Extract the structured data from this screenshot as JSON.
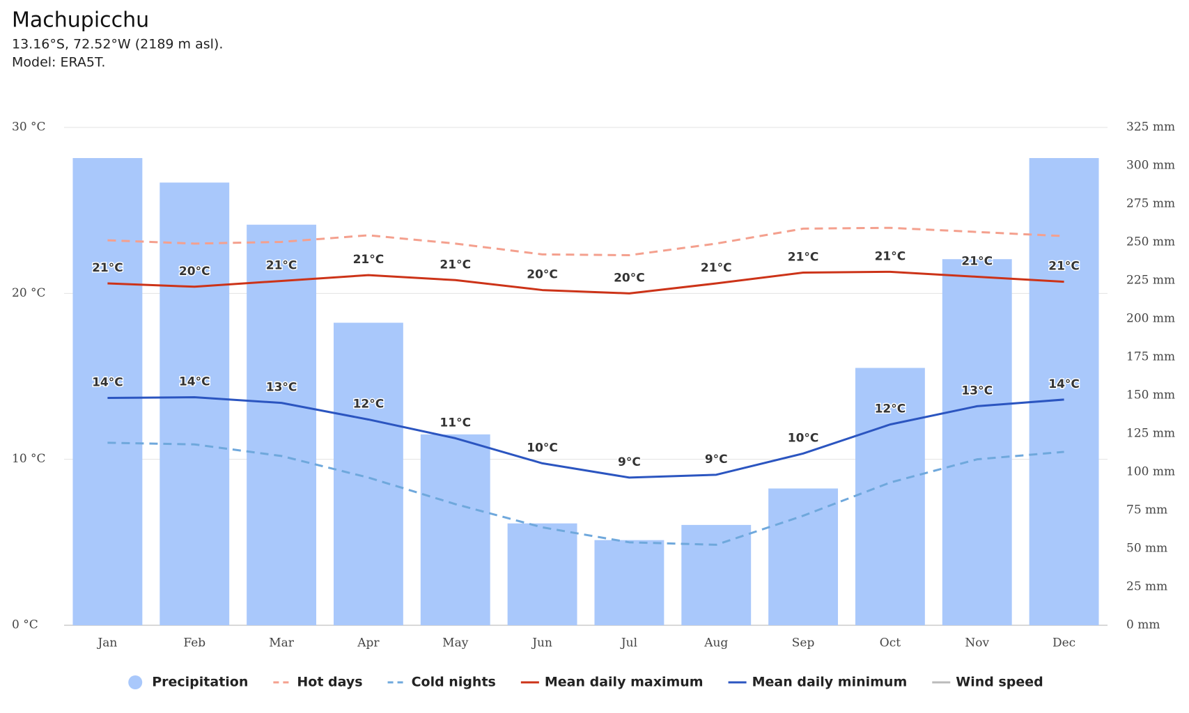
{
  "chart_data": {
    "type": "bar",
    "title": "Machupicchu",
    "subtitle": "13.16°S, 72.52°W (2189 m asl).",
    "note": "Model: ERA5T.",
    "categories": [
      "Jan",
      "Feb",
      "Mar",
      "Apr",
      "May",
      "Jun",
      "Jul",
      "Aug",
      "Sep",
      "Oct",
      "Nov",
      "Dec"
    ],
    "ylim": [
      0,
      30
    ],
    "yticks": [
      {
        "value": 0,
        "label": "0 °C"
      },
      {
        "value": 10,
        "label": "10 °C"
      },
      {
        "value": 20,
        "label": "20 °C"
      },
      {
        "value": 30,
        "label": "30 °C"
      }
    ],
    "y2lim": [
      0,
      325
    ],
    "y2ticks": [
      {
        "value": 0,
        "label": "0 mm"
      },
      {
        "value": 25,
        "label": "25 mm"
      },
      {
        "value": 50,
        "label": "50 mm"
      },
      {
        "value": 75,
        "label": "75 mm"
      },
      {
        "value": 100,
        "label": "100 mm"
      },
      {
        "value": 125,
        "label": "125 mm"
      },
      {
        "value": 150,
        "label": "150 mm"
      },
      {
        "value": 175,
        "label": "175 mm"
      },
      {
        "value": 200,
        "label": "200 mm"
      },
      {
        "value": 225,
        "label": "225 mm"
      },
      {
        "value": 250,
        "label": "250 mm"
      },
      {
        "value": 275,
        "label": "275 mm"
      },
      {
        "value": 300,
        "label": "300 mm"
      },
      {
        "value": 325,
        "label": "325 mm"
      }
    ],
    "grid": true,
    "legend": "bottom",
    "series": [
      {
        "name": "Precipitation",
        "type": "bar",
        "axis": "y2",
        "color": "#a9c8fb",
        "values": [
          305,
          289,
          261.5,
          197.5,
          124.6,
          66.5,
          55.6,
          65.5,
          89.3,
          168,
          239,
          305
        ]
      },
      {
        "name": "Hot days",
        "type": "line",
        "dashed": true,
        "color": "#f4a08e",
        "values": [
          23.2,
          23.0,
          23.1,
          23.5,
          23.0,
          22.35,
          22.3,
          23.0,
          23.9,
          23.95,
          23.7,
          23.45
        ]
      },
      {
        "name": "Cold nights",
        "type": "line",
        "dashed": true,
        "color": "#6fa8dc",
        "values": [
          11.0,
          10.9,
          10.2,
          8.9,
          7.3,
          5.9,
          5.0,
          4.85,
          6.6,
          8.6,
          10.0,
          10.45
        ]
      },
      {
        "name": "Mean daily maximum",
        "type": "line",
        "color": "#cc3318",
        "values": [
          20.6,
          20.4,
          20.75,
          21.1,
          20.8,
          20.2,
          20.0,
          20.6,
          21.25,
          21.3,
          21.0,
          20.7
        ],
        "value_labels": [
          "21°C",
          "20°C",
          "21°C",
          "21°C",
          "21°C",
          "20°C",
          "20°C",
          "21°C",
          "21°C",
          "21°C",
          "21°C",
          "21°C"
        ]
      },
      {
        "name": "Mean daily minimum",
        "type": "line",
        "color": "#2b55c0",
        "values": [
          13.7,
          13.74,
          13.4,
          12.4,
          11.27,
          9.76,
          8.9,
          9.07,
          10.35,
          12.1,
          13.2,
          13.6
        ],
        "value_labels": [
          "14°C",
          "14°C",
          "13°C",
          "12°C",
          "11°C",
          "10°C",
          "9°C",
          "9°C",
          "10°C",
          "12°C",
          "13°C",
          "14°C"
        ]
      },
      {
        "name": "Wind speed",
        "type": "line",
        "visible": false,
        "color": "#aaaaaa",
        "values": [
          null,
          null,
          null,
          null,
          null,
          null,
          null,
          null,
          null,
          null,
          null,
          null
        ]
      }
    ]
  }
}
